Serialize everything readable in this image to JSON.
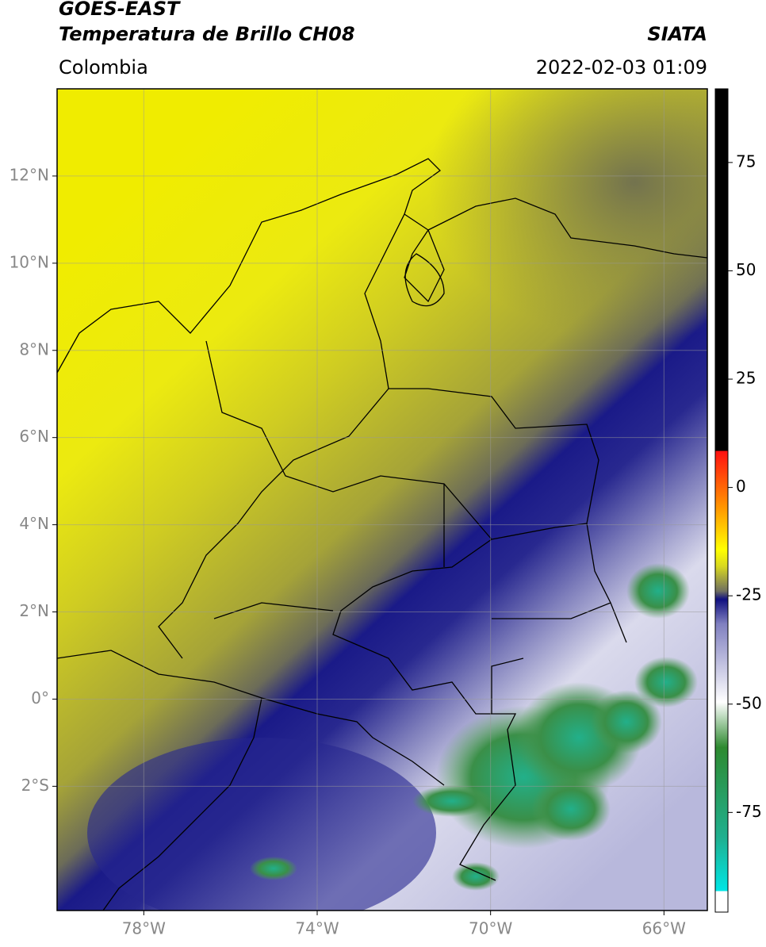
{
  "header": {
    "title": "GOES-EAST",
    "subtitle": "Temperatura de Brillo CH08",
    "region": "Colombia",
    "source": "SIATA",
    "datetime": "2022-02-03 01:09"
  },
  "map": {
    "xlim": [
      -80,
      -65
    ],
    "ylim": [
      -4.85,
      14
    ],
    "xticks": [
      {
        "value": -78,
        "label": "78°W"
      },
      {
        "value": -74,
        "label": "74°W"
      },
      {
        "value": -70,
        "label": "70°W"
      },
      {
        "value": -66,
        "label": "66°W"
      }
    ],
    "yticks": [
      {
        "value": 12,
        "label": "12°N"
      },
      {
        "value": 10,
        "label": "10°N"
      },
      {
        "value": 8,
        "label": "8°N"
      },
      {
        "value": 6,
        "label": "6°N"
      },
      {
        "value": 4,
        "label": "4°N"
      },
      {
        "value": 2,
        "label": "2°N"
      },
      {
        "value": 0,
        "label": "0°"
      },
      {
        "value": -2,
        "label": "2°S"
      }
    ],
    "grid": true
  },
  "colorbar": {
    "range": [
      -98,
      92
    ],
    "ticks": [
      75,
      50,
      25,
      0,
      -25,
      -50,
      -75
    ]
  }
}
